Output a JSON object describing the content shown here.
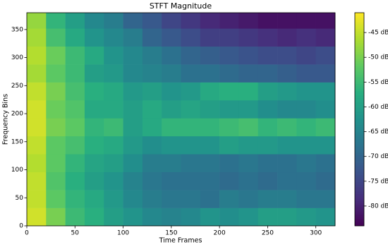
{
  "chart_data": {
    "type": "heatmap",
    "title": "STFT Magnitude",
    "x_label": "Time Frames",
    "y_label": "Frequency Bins",
    "colormap": "viridis",
    "xlim": [
      0,
      320
    ],
    "ylim": [
      0,
      380
    ],
    "xticks": [
      0,
      50,
      100,
      150,
      200,
      250,
      300
    ],
    "yticks": [
      0,
      50,
      100,
      150,
      200,
      250,
      300,
      350
    ],
    "x_edges": [
      0,
      20,
      40,
      60,
      80,
      100,
      120,
      140,
      160,
      180,
      200,
      220,
      240,
      260,
      280,
      300,
      320
    ],
    "y_edges": [
      0,
      32,
      64,
      96,
      128,
      160,
      192,
      224,
      256,
      288,
      320,
      352,
      380
    ],
    "values": [
      [
        -44,
        -50,
        -55,
        -57,
        -60,
        -62,
        -64,
        -65,
        -64,
        -62,
        -63,
        -62,
        -60,
        -60,
        -61,
        -62
      ],
      [
        -45,
        -52,
        -56,
        -58,
        -61,
        -64,
        -66,
        -67,
        -67,
        -68,
        -66,
        -67,
        -66,
        -66,
        -67,
        -67
      ],
      [
        -45,
        -53,
        -57,
        -60,
        -62,
        -65,
        -67,
        -68,
        -68,
        -68,
        -69,
        -68,
        -69,
        -68,
        -68,
        -69
      ],
      [
        -46,
        -52,
        -56,
        -59,
        -60,
        -63,
        -66,
        -66,
        -67,
        -67,
        -68,
        -67,
        -68,
        -68,
        -67,
        -68
      ],
      [
        -45,
        -52,
        -54,
        -57,
        -58,
        -61,
        -63,
        -62,
        -62,
        -62,
        -60,
        -61,
        -61,
        -62,
        -62,
        -62
      ],
      [
        -44,
        -50,
        -52,
        -56,
        -55,
        -60,
        -58,
        -56,
        -56,
        -56,
        -55,
        -54,
        -56,
        -55,
        -56,
        -55
      ],
      [
        -44,
        -51,
        -53,
        -58,
        -58,
        -60,
        -58,
        -60,
        -59,
        -60,
        -61,
        -61,
        -63,
        -64,
        -64,
        -63
      ],
      [
        -45,
        -50,
        -54,
        -57,
        -58,
        -61,
        -60,
        -62,
        -61,
        -58,
        -57,
        -57,
        -60,
        -61,
        -62,
        -62
      ],
      [
        -47,
        -52,
        -55,
        -60,
        -61,
        -64,
        -65,
        -66,
        -68,
        -68,
        -69,
        -70,
        -70,
        -71,
        -72,
        -72
      ],
      [
        -46,
        -51,
        -55,
        -58,
        -62,
        -64,
        -66,
        -68,
        -70,
        -71,
        -72,
        -73,
        -74,
        -74,
        -75,
        -74
      ],
      [
        -47,
        -54,
        -58,
        -62,
        -64,
        -66,
        -70,
        -72,
        -74,
        -76,
        -76,
        -77,
        -78,
        -79,
        -78,
        -79
      ],
      [
        -48,
        -56,
        -60,
        -64,
        -66,
        -70,
        -72,
        -75,
        -77,
        -79,
        -80,
        -81,
        -82,
        -82,
        -82,
        -82
      ]
    ],
    "clim": [
      -84,
      -41
    ],
    "colorbar_ticks": [
      {
        "value": -45,
        "label": "-45 dB"
      },
      {
        "value": -50,
        "label": "-50 dB"
      },
      {
        "value": -55,
        "label": "-55 dB"
      },
      {
        "value": -60,
        "label": "-60 dB"
      },
      {
        "value": -65,
        "label": "-65 dB"
      },
      {
        "value": -70,
        "label": "-70 dB"
      },
      {
        "value": -75,
        "label": "-75 dB"
      },
      {
        "value": -80,
        "label": "-80 dB"
      }
    ]
  }
}
